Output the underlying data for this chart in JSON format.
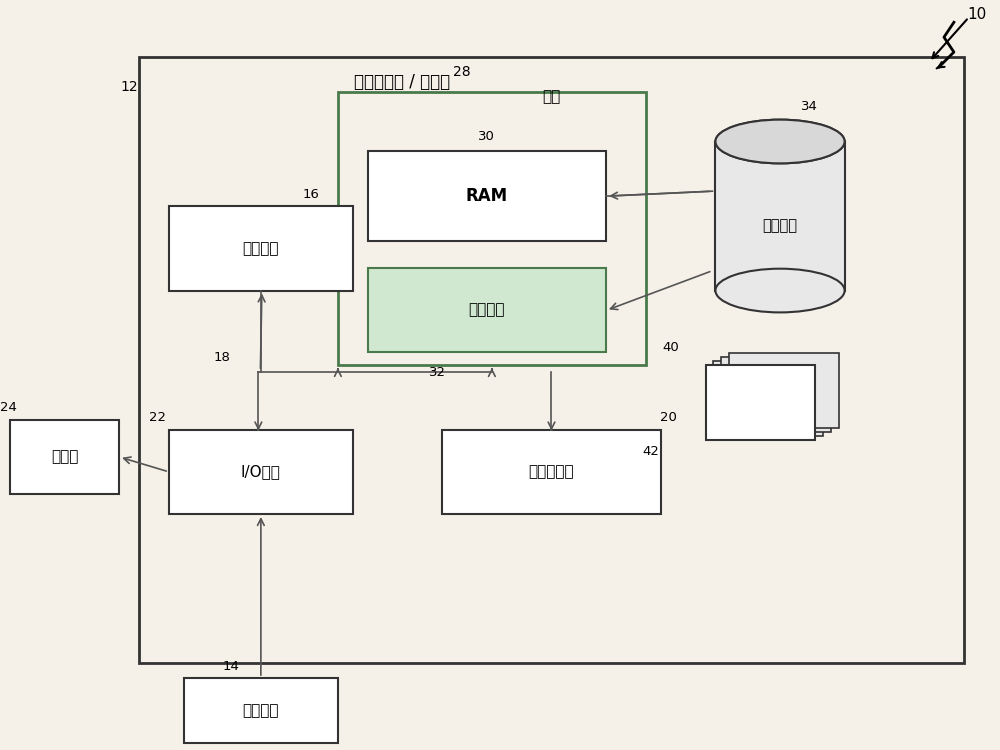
{
  "bg_color": "#f5f0e8",
  "title_label": "计算机系统 / 服务器",
  "ref_num": "10",
  "outer_box_label": "12",
  "labels": {
    "ram": "RAM",
    "cache": "高速缓存",
    "memory": "内存",
    "storage": "存储系统",
    "processor": "处理单元",
    "io": "I/O接口",
    "network": "网络适配器",
    "display": "显示器",
    "external": "外部设备"
  },
  "ref_numbers": {
    "ram": "30",
    "cache": "32",
    "memory_box": "28",
    "storage": "34",
    "stacked": "40",
    "stacked2": "42",
    "processor": "16",
    "bus": "18",
    "io": "22",
    "network": "20",
    "display": "24",
    "external": "14"
  }
}
